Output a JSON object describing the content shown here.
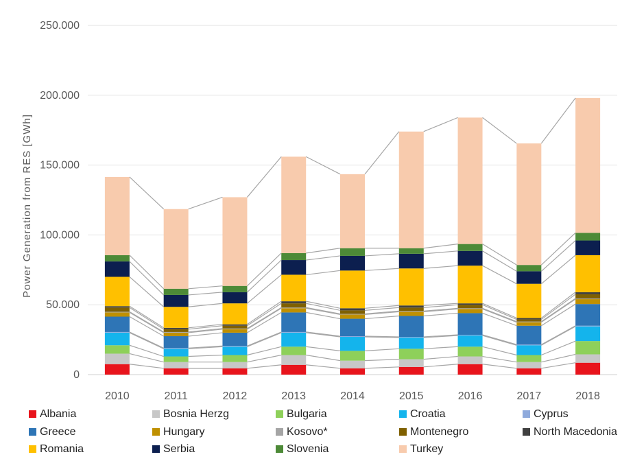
{
  "chart_data": {
    "type": "bar",
    "stacked": true,
    "ylabel": "Power Generation from RES [GWh]",
    "ylim": [
      0,
      250000
    ],
    "yticks": [
      "0",
      "50.000",
      "100.000",
      "150.000",
      "200.000",
      "250.000"
    ],
    "ytick_values": [
      0,
      50000,
      100000,
      150000,
      200000,
      250000
    ],
    "categories": [
      "2010",
      "2011",
      "2012",
      "2013",
      "2014",
      "2015",
      "2016",
      "2017",
      "2018"
    ],
    "grid": true,
    "legend_position": "bottom",
    "series": [
      {
        "name": "Albania",
        "color": "#e8141c",
        "values": [
          7500,
          4500,
          4500,
          7000,
          4500,
          5500,
          7500,
          4500,
          8500
        ]
      },
      {
        "name": "Bosnia Herzg",
        "color": "#c7c7c7",
        "values": [
          7500,
          4500,
          4500,
          7000,
          5500,
          5500,
          5500,
          4500,
          6000
        ]
      },
      {
        "name": "Bulgaria",
        "color": "#8ed05a",
        "values": [
          6000,
          4000,
          5000,
          6000,
          7000,
          7500,
          7000,
          5000,
          9500
        ]
      },
      {
        "name": "Croatia",
        "color": "#14b4ec",
        "values": [
          9000,
          5500,
          6000,
          10000,
          10000,
          8000,
          8000,
          7000,
          10500
        ]
      },
      {
        "name": "Cyprus",
        "color": "#8faadc",
        "values": [
          500,
          500,
          500,
          500,
          500,
          500,
          500,
          500,
          500
        ]
      },
      {
        "name": "Greece",
        "color": "#2e75b6",
        "values": [
          11000,
          8500,
          9500,
          14000,
          12500,
          15000,
          15500,
          13500,
          15500
        ]
      },
      {
        "name": "Hungary",
        "color": "#bf9000",
        "values": [
          3000,
          2500,
          2500,
          3000,
          3000,
          3000,
          3000,
          2500,
          3500
        ]
      },
      {
        "name": "Kosovo*",
        "color": "#a5a5a5",
        "values": [
          500,
          500,
          500,
          500,
          500,
          500,
          500,
          500,
          500
        ]
      },
      {
        "name": "Montenegro",
        "color": "#7f6000",
        "values": [
          3000,
          2000,
          2000,
          3000,
          2500,
          2500,
          2500,
          1500,
          3000
        ]
      },
      {
        "name": "North Macedonia",
        "color": "#404040",
        "values": [
          1000,
          1000,
          1000,
          1500,
          1500,
          1500,
          1000,
          1000,
          1500
        ]
      },
      {
        "name": "Romania",
        "color": "#ffc000",
        "values": [
          21000,
          15000,
          15000,
          19000,
          27000,
          26500,
          27000,
          24500,
          26500
        ]
      },
      {
        "name": "Serbia",
        "color": "#0c1f4f",
        "values": [
          11000,
          8500,
          8000,
          10500,
          10500,
          10500,
          10500,
          9000,
          10500
        ]
      },
      {
        "name": "Slovenia",
        "color": "#4d8a37",
        "values": [
          4500,
          4500,
          4500,
          5000,
          5500,
          4000,
          5000,
          4500,
          5500
        ]
      },
      {
        "name": "Turkey",
        "color": "#f8cbad",
        "values": [
          56000,
          57000,
          63500,
          69000,
          53000,
          83500,
          90500,
          87000,
          96500
        ]
      }
    ]
  }
}
